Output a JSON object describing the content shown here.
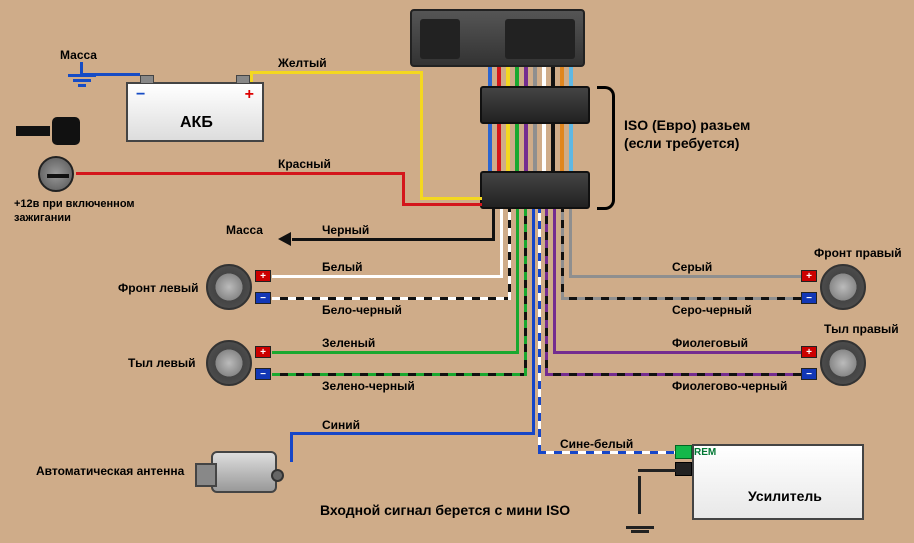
{
  "labels": {
    "ground": "Масса",
    "battery": "АКБ",
    "ign_note1": "+12в при включенном",
    "ign_note2": "зажигании",
    "ground_b": "Масса",
    "speaker_fl": "Фронт левый",
    "speaker_rl": "Тыл левый",
    "speaker_fr": "Фронт правый",
    "speaker_rr": "Тыл правый",
    "antenna": "Автоматическая антенна",
    "amp": "Усилитель",
    "rem": "REM",
    "iso1": "ISO (Евро) разьем",
    "iso2": "(если требуется)",
    "footer": "Входной сигнал берется с мини ISO"
  },
  "wires": {
    "yellow": "Желтый",
    "red": "Красный",
    "black": "Черный",
    "white": "Белый",
    "white_black": "Бело-черный",
    "green": "Зеленый",
    "green_black": "Зелено-черный",
    "gray": "Серый",
    "gray_black": "Серо-черный",
    "violet": "Фиолеговый",
    "violet_black": "Фиолегово-черный",
    "blue": "Синий",
    "blue_white": "Сине-белый"
  },
  "colors": {
    "yellow": "#f4d820",
    "red": "#d4161b",
    "black": "#111111",
    "white": "#ffffff",
    "whiteblack_a": "#ffffff",
    "whiteblack_b": "#111111",
    "green": "#1aa82f",
    "greenblack_a": "#1aa82f",
    "greenblack_b": "#111111",
    "gray": "#8f8f8f",
    "grayblack_a": "#8f8f8f",
    "grayblack_b": "#111111",
    "violet": "#742c90",
    "violetblack_a": "#742c90",
    "violetblack_b": "#111111",
    "blue": "#1646c8",
    "bluewhite_a": "#1646c8",
    "bluewhite_b": "#ffffff",
    "ground_blue": "#164cc5",
    "iso_bundle": [
      "#2c66d1",
      "#d4161b",
      "#f4d820",
      "#1aa82f",
      "#742c90",
      "#8f8f8f",
      "#ffffff",
      "#111111",
      "#e0861e",
      "#5fb8e4"
    ]
  }
}
